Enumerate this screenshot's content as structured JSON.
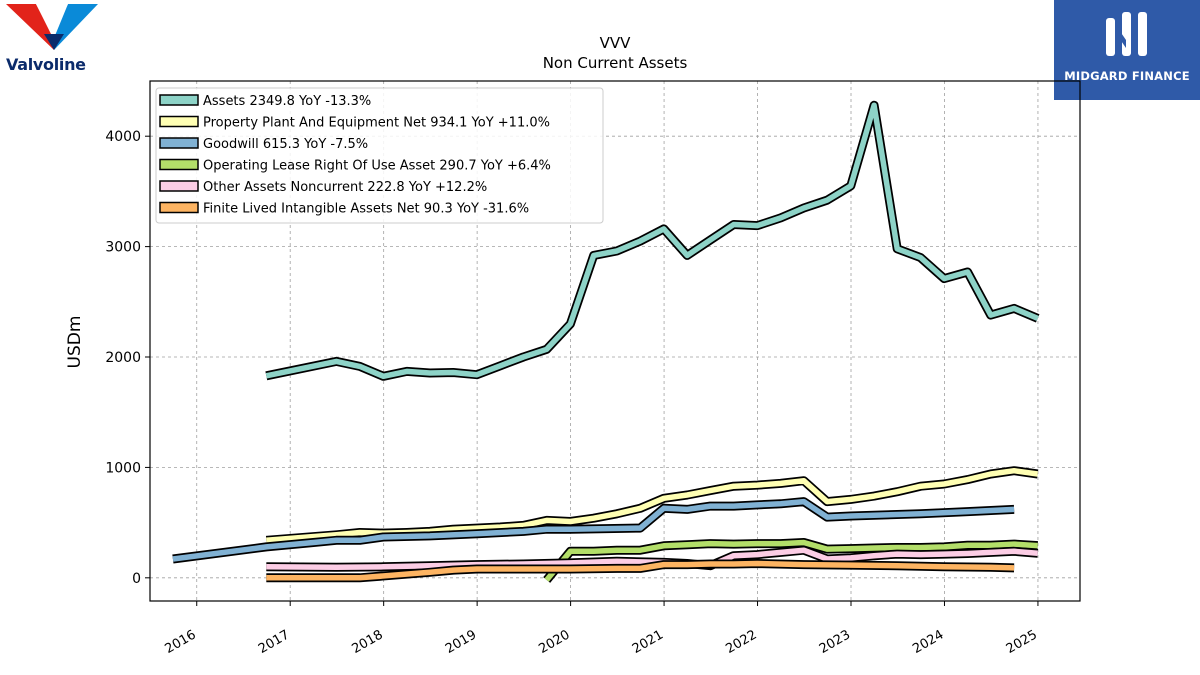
{
  "logos": {
    "left_name": "valvoline-logo",
    "left_text": "Valvoline",
    "right_name": "midgard-finance-logo",
    "right_text": "MIDGARD FINANCE"
  },
  "chart_data": {
    "type": "line",
    "title": "VVV",
    "subtitle": "Non Current  Assets",
    "xlabel": "",
    "ylabel": "USDm",
    "xlim": [
      2015.5,
      2025.45
    ],
    "ylim": [
      -210,
      4500
    ],
    "x_ticks": [
      "2016",
      "2017",
      "2018",
      "2019",
      "2020",
      "2021",
      "2022",
      "2023",
      "2024",
      "2025"
    ],
    "y_ticks": [
      "0",
      "1000",
      "2000",
      "3000",
      "4000"
    ],
    "grid": true,
    "legend_position": "top-left",
    "series": [
      {
        "name": "Assets  2349.8 YoY -13.3%",
        "color": "#8dd3c7",
        "points": [
          [
            "2016-09-30",
            1830
          ],
          [
            "2017-06-30",
            1960
          ],
          [
            "2017-09-30",
            1915
          ],
          [
            "2017-12-31",
            1825
          ],
          [
            "2018-03-31",
            1870
          ],
          [
            "2018-06-30",
            1855
          ],
          [
            "2018-09-30",
            1860
          ],
          [
            "2018-12-31",
            1840
          ],
          [
            "2019-03-31",
            1920
          ],
          [
            "2019-06-30",
            2000
          ],
          [
            "2019-09-30",
            2070
          ],
          [
            "2019-12-31",
            2300
          ],
          [
            "2020-03-31",
            2920
          ],
          [
            "2020-06-30",
            2960
          ],
          [
            "2020-09-30",
            3050
          ],
          [
            "2020-12-31",
            3160
          ],
          [
            "2021-03-31",
            2920
          ],
          [
            "2021-06-30",
            3060
          ],
          [
            "2021-09-30",
            3200
          ],
          [
            "2021-12-31",
            3190
          ],
          [
            "2022-03-31",
            3260
          ],
          [
            "2022-06-30",
            3350
          ],
          [
            "2022-09-30",
            3420
          ],
          [
            "2022-12-31",
            3550
          ],
          [
            "2023-03-31",
            4280
          ],
          [
            "2023-06-30",
            2980
          ],
          [
            "2023-09-30",
            2900
          ],
          [
            "2023-12-31",
            2710
          ],
          [
            "2024-03-31",
            2770
          ],
          [
            "2024-06-30",
            2380
          ],
          [
            "2024-09-30",
            2440
          ],
          [
            "2024-12-31",
            2350
          ]
        ]
      },
      {
        "name": "Property Plant And Equipment Net  934.1 YoY +11.0%",
        "color": "#ffffb3",
        "points": [
          [
            "2016-09-30",
            340
          ],
          [
            "2017-06-30",
            390
          ],
          [
            "2017-09-30",
            410
          ],
          [
            "2017-12-31",
            405
          ],
          [
            "2018-03-31",
            410
          ],
          [
            "2018-06-30",
            420
          ],
          [
            "2018-09-30",
            440
          ],
          [
            "2018-12-31",
            450
          ],
          [
            "2019-03-31",
            460
          ],
          [
            "2019-06-30",
            475
          ],
          [
            "2019-09-30",
            520
          ],
          [
            "2019-12-31",
            510
          ],
          [
            "2020-03-31",
            540
          ],
          [
            "2020-06-30",
            580
          ],
          [
            "2020-09-30",
            630
          ],
          [
            "2020-12-31",
            720
          ],
          [
            "2021-03-31",
            750
          ],
          [
            "2021-06-30",
            790
          ],
          [
            "2021-09-30",
            830
          ],
          [
            "2021-12-31",
            840
          ],
          [
            "2022-03-31",
            855
          ],
          [
            "2022-06-30",
            880
          ],
          [
            "2022-09-30",
            690
          ],
          [
            "2022-12-31",
            710
          ],
          [
            "2023-03-31",
            740
          ],
          [
            "2023-06-30",
            780
          ],
          [
            "2023-09-30",
            830
          ],
          [
            "2023-12-31",
            850
          ],
          [
            "2024-03-31",
            890
          ],
          [
            "2024-06-30",
            940
          ],
          [
            "2024-09-30",
            970
          ],
          [
            "2024-12-31",
            940
          ]
        ]
      },
      {
        "name": "Goodwill  615.3 YoY -7.5%",
        "color": "#80b1d3",
        "points": [
          [
            "2015-09-30",
            170
          ],
          [
            "2016-09-30",
            280
          ],
          [
            "2017-03-31",
            320
          ],
          [
            "2017-06-30",
            340
          ],
          [
            "2017-09-30",
            340
          ],
          [
            "2017-12-31",
            370
          ],
          [
            "2018-06-30",
            380
          ],
          [
            "2018-12-31",
            400
          ],
          [
            "2019-06-30",
            420
          ],
          [
            "2019-09-30",
            440
          ],
          [
            "2019-12-31",
            440
          ],
          [
            "2020-09-30",
            450
          ],
          [
            "2020-12-31",
            630
          ],
          [
            "2021-03-31",
            620
          ],
          [
            "2021-06-30",
            650
          ],
          [
            "2021-09-30",
            650
          ],
          [
            "2021-12-31",
            660
          ],
          [
            "2022-03-31",
            670
          ],
          [
            "2022-06-30",
            690
          ],
          [
            "2022-09-30",
            550
          ],
          [
            "2022-12-31",
            560
          ],
          [
            "2023-09-30",
            580
          ],
          [
            "2024-03-31",
            600
          ],
          [
            "2024-09-30",
            620
          ]
        ]
      },
      {
        "name": "Operating Lease Right Of Use Asset  290.7 YoY +6.4%",
        "color": "#b3de69",
        "points": [
          [
            "2019-09-30",
            -20
          ],
          [
            "2019-12-31",
            240
          ],
          [
            "2020-03-31",
            240
          ],
          [
            "2020-06-30",
            250
          ],
          [
            "2020-09-30",
            250
          ],
          [
            "2020-12-31",
            290
          ],
          [
            "2021-03-31",
            300
          ],
          [
            "2021-06-30",
            310
          ],
          [
            "2021-09-30",
            305
          ],
          [
            "2021-12-31",
            310
          ],
          [
            "2022-03-31",
            310
          ],
          [
            "2022-06-30",
            320
          ],
          [
            "2022-09-30",
            260
          ],
          [
            "2022-12-31",
            265
          ],
          [
            "2023-03-31",
            270
          ],
          [
            "2023-06-30",
            275
          ],
          [
            "2023-09-30",
            275
          ],
          [
            "2023-12-31",
            280
          ],
          [
            "2024-03-31",
            295
          ],
          [
            "2024-06-30",
            295
          ],
          [
            "2024-09-30",
            305
          ],
          [
            "2024-12-31",
            292
          ]
        ]
      },
      {
        "name": "Other Assets Noncurrent  222.8 YoY +12.2%",
        "color": "#fccde5",
        "points": [
          [
            "2016-09-30",
            100
          ],
          [
            "2017-06-30",
            95
          ],
          [
            "2017-12-31",
            100
          ],
          [
            "2018-06-30",
            110
          ],
          [
            "2018-12-31",
            120
          ],
          [
            "2019-06-30",
            125
          ],
          [
            "2019-12-31",
            135
          ],
          [
            "2020-06-30",
            150
          ],
          [
            "2020-12-31",
            140
          ],
          [
            "2021-03-31",
            130
          ],
          [
            "2021-06-30",
            110
          ],
          [
            "2021-09-30",
            200
          ],
          [
            "2021-12-31",
            210
          ],
          [
            "2022-03-31",
            230
          ],
          [
            "2022-06-30",
            250
          ],
          [
            "2022-09-30",
            170
          ],
          [
            "2022-12-31",
            180
          ],
          [
            "2023-03-31",
            200
          ],
          [
            "2023-06-30",
            215
          ],
          [
            "2023-09-30",
            210
          ],
          [
            "2023-12-31",
            215
          ],
          [
            "2024-03-31",
            220
          ],
          [
            "2024-06-30",
            230
          ],
          [
            "2024-09-30",
            240
          ],
          [
            "2024-12-31",
            222
          ]
        ]
      },
      {
        "name": "Finite Lived Intangible Assets Net  90.3 YoY -31.6%",
        "color": "#fdb462",
        "points": [
          [
            "2016-09-30",
            0
          ],
          [
            "2017-06-30",
            0
          ],
          [
            "2017-09-30",
            0
          ],
          [
            "2018-06-30",
            50
          ],
          [
            "2018-09-30",
            70
          ],
          [
            "2018-12-31",
            80
          ],
          [
            "2019-06-30",
            80
          ],
          [
            "2019-12-31",
            80
          ],
          [
            "2020-06-30",
            85
          ],
          [
            "2020-09-30",
            85
          ],
          [
            "2020-12-31",
            120
          ],
          [
            "2021-03-31",
            120
          ],
          [
            "2021-06-30",
            125
          ],
          [
            "2021-09-30",
            125
          ],
          [
            "2021-12-31",
            130
          ],
          [
            "2022-06-30",
            120
          ],
          [
            "2022-12-31",
            115
          ],
          [
            "2023-06-30",
            110
          ],
          [
            "2023-12-31",
            100
          ],
          [
            "2024-06-30",
            95
          ],
          [
            "2024-09-30",
            90
          ]
        ]
      }
    ]
  }
}
